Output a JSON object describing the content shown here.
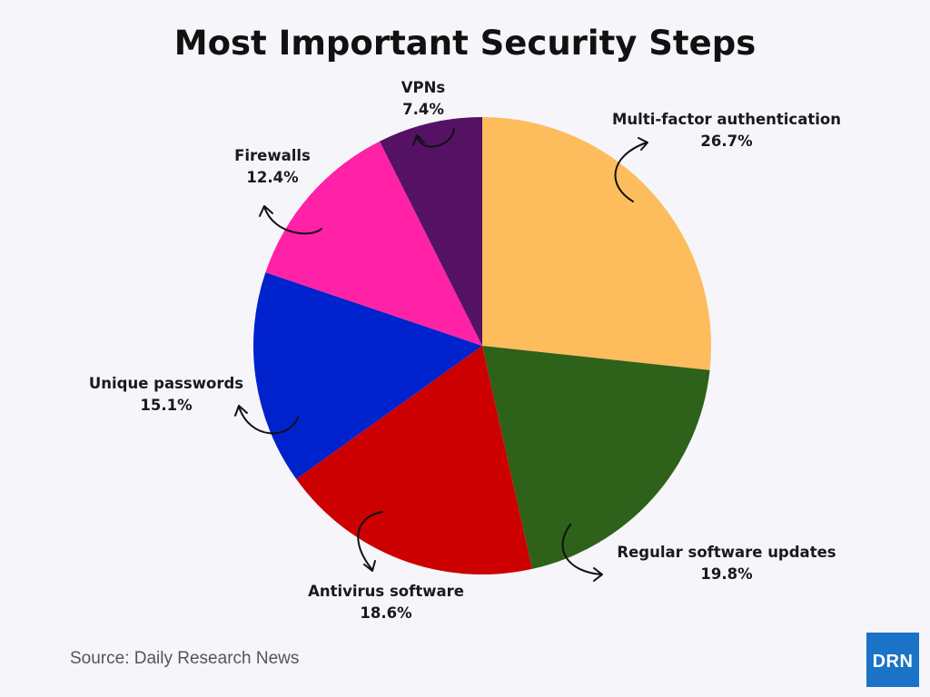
{
  "chart_data": {
    "type": "pie",
    "title": "Most Important Security Steps",
    "slices": [
      {
        "label": "Multi-factor authentication",
        "value": 26.7,
        "value_label": "26.7%",
        "color": "#fdbd5d"
      },
      {
        "label": "Regular software updates",
        "value": 19.8,
        "value_label": "19.8%",
        "color": "#2e6119"
      },
      {
        "label": "Antivirus software",
        "value": 18.6,
        "value_label": "18.6%",
        "color": "#cc0000"
      },
      {
        "label": "Unique passwords",
        "value": 15.1,
        "value_label": "15.1%",
        "color": "#0022cc"
      },
      {
        "label": "Firewalls",
        "value": 12.4,
        "value_label": "12.4%",
        "color": "#ff22a6"
      },
      {
        "label": "VPNs",
        "value": 7.4,
        "value_label": "7.4%",
        "color": "#551264"
      }
    ]
  },
  "source": "Source: Daily Research News",
  "logo": {
    "text": "DRN",
    "color": "#1a73c7"
  }
}
